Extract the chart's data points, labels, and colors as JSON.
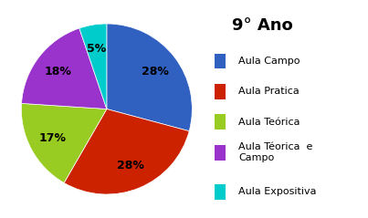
{
  "title": "9° Ano",
  "labels": [
    "Aula Campo",
    "Aula Pratica",
    "Aula Teórica",
    "Aula Téorica  e\nCampo",
    "Aula Expositiva"
  ],
  "values": [
    28,
    28,
    17,
    18,
    5
  ],
  "colors": [
    "#3060c0",
    "#cc2200",
    "#99cc22",
    "#9933cc",
    "#00cccc"
  ],
  "startangle": 90,
  "background_color": "#ffffff",
  "title_fontsize": 13,
  "legend_fontsize": 8.0
}
